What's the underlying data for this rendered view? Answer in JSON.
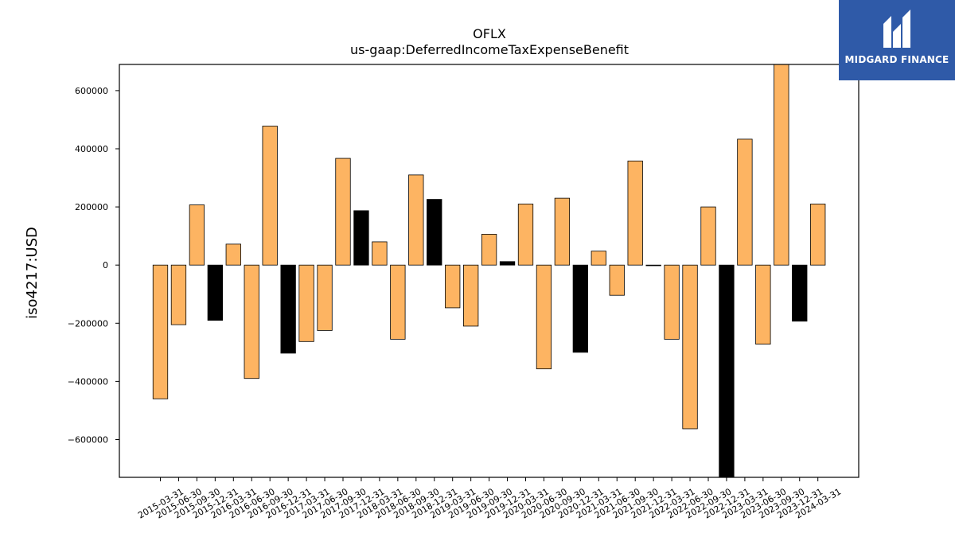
{
  "colors": {
    "positive_bar": "#fdb462",
    "negative_bar": "#fdb462",
    "highlight_bar": "#000000",
    "edge": "#000000"
  },
  "logo": {
    "text": "MIDGARD FINANCE",
    "icon": "midgard-logo-icon"
  },
  "chart_data": {
    "type": "bar",
    "title": "OFLX",
    "subtitle": "us-gaap:DeferredIncomeTaxExpenseBenefit",
    "xlabel": "",
    "ylabel": "iso4217:USD",
    "ylim": [
      -730000,
      690000
    ],
    "yticks": [
      -600000,
      -400000,
      -200000,
      0,
      200000,
      400000,
      600000
    ],
    "ytick_labels": [
      "−600000",
      "−400000",
      "−200000",
      "0",
      "200000",
      "400000",
      "600000"
    ],
    "grid": false,
    "categories": [
      "2015-03-31",
      "2015-06-30",
      "2015-09-30",
      "2015-12-31",
      "2016-03-31",
      "2016-06-30",
      "2016-09-30",
      "2016-12-31",
      "2017-03-31",
      "2017-06-30",
      "2017-09-30",
      "2017-12-31",
      "2018-03-31",
      "2018-06-30",
      "2018-09-30",
      "2018-12-31",
      "2019-03-31",
      "2019-06-30",
      "2019-09-30",
      "2019-12-31",
      "2020-03-31",
      "2020-06-30",
      "2020-09-30",
      "2020-12-31",
      "2021-03-31",
      "2021-06-30",
      "2021-09-30",
      "2021-12-31",
      "2022-03-31",
      "2022-06-30",
      "2022-09-30",
      "2022-12-31",
      "2023-03-31",
      "2023-06-30",
      "2023-09-30",
      "2023-12-31",
      "2024-03-31"
    ],
    "values": [
      -460000,
      -205000,
      207000,
      -190000,
      72000,
      -390000,
      478000,
      -303000,
      -263000,
      -225000,
      367000,
      187000,
      80000,
      -255000,
      310000,
      226000,
      -147000,
      -210000,
      106000,
      12000,
      210000,
      -357000,
      230000,
      -300000,
      48000,
      -104000,
      358000,
      -2000,
      -255000,
      -563000,
      200000,
      -728000,
      433000,
      -272000,
      690000,
      -193000,
      210000
    ],
    "highlight": [
      false,
      false,
      false,
      true,
      false,
      false,
      false,
      true,
      false,
      false,
      false,
      true,
      false,
      false,
      false,
      true,
      false,
      false,
      false,
      true,
      false,
      false,
      false,
      true,
      false,
      false,
      false,
      true,
      false,
      false,
      false,
      true,
      false,
      false,
      false,
      true,
      false
    ]
  }
}
